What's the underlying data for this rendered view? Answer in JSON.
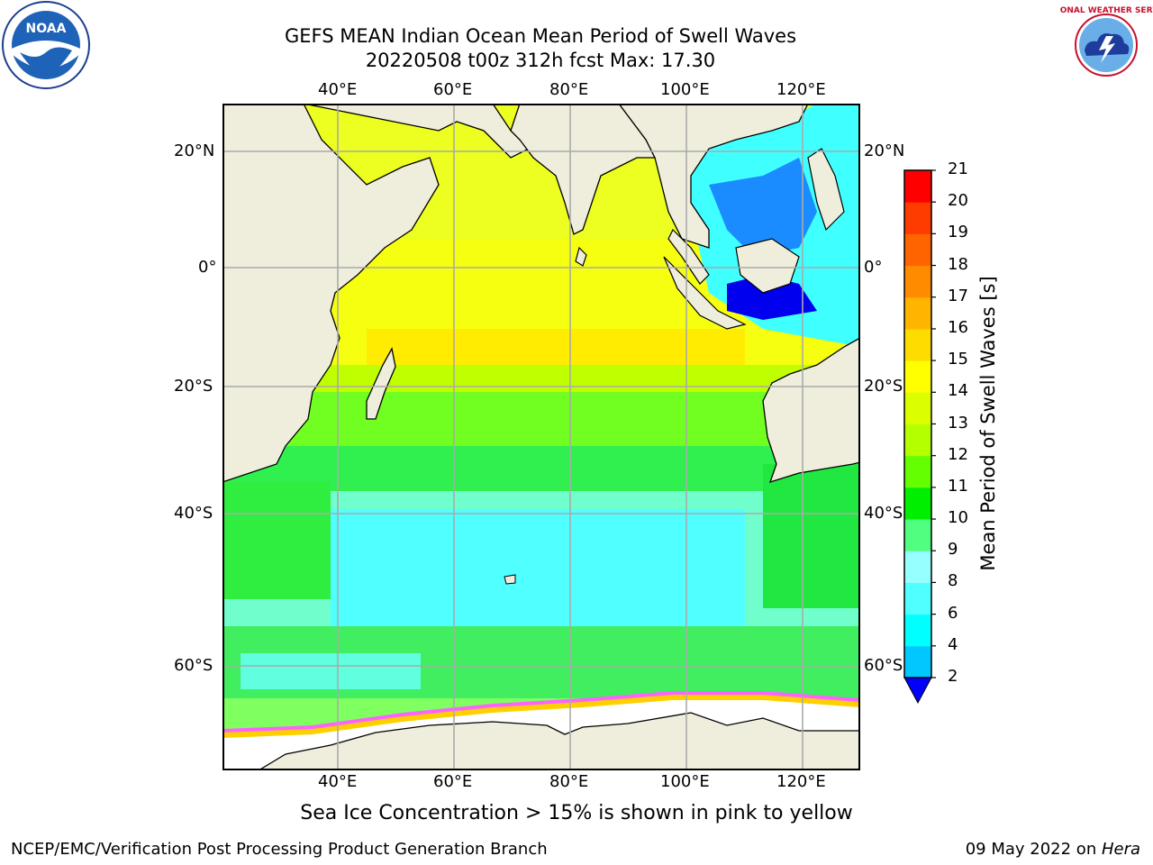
{
  "header": {
    "title_line1": "GEFS MEAN Indian Ocean Mean Period of Swell Waves",
    "title_line2": "20220508 t00z 312h fcst   Max: 17.30"
  },
  "map": {
    "lon_ticks": [
      "40°E",
      "60°E",
      "80°E",
      "100°E",
      "120°E"
    ],
    "lat_ticks": [
      "20°N",
      "0°",
      "20°S",
      "40°S",
      "60°S"
    ],
    "colors": {
      "land": "#efeedc",
      "ice": "#ffffff",
      "coast": "#000000",
      "grid": "#aaaaaa"
    }
  },
  "colorbar": {
    "label": "Mean Period of Swell Waves [s]",
    "tick_labels": [
      "2",
      "4",
      "6",
      "8",
      "9",
      "10",
      "11",
      "12",
      "13",
      "14",
      "15",
      "16",
      "17",
      "18",
      "19",
      "20",
      "21"
    ],
    "colors": [
      "#0064ff",
      "#00c8ff",
      "#00ffff",
      "#50ffff",
      "#96ffff",
      "#50ff80",
      "#00ee00",
      "#64ff00",
      "#b4ff00",
      "#dcff00",
      "#ffff00",
      "#ffdc00",
      "#ffb400",
      "#ff8c00",
      "#ff6400",
      "#ff3c00",
      "#ff0000"
    ],
    "extend_color": "#0000ff"
  },
  "footer": {
    "note": "Sea Ice Concentration > 15% is shown in pink to yellow",
    "credit": "NCEP/EMC/Verification Post Processing Product Generation Branch",
    "date_text": "09 May 2022 on ",
    "date_machine": "Hera"
  },
  "logos": {
    "noaa_text": "NOAA",
    "nws_text": "NATIONAL WEATHER SERVICE"
  }
}
